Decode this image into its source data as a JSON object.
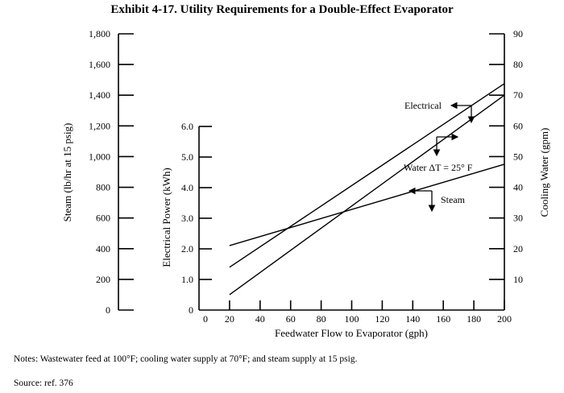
{
  "title": "Exhibit 4-17. Utility Requirements for a Double-Effect Evaporator",
  "notes": "Notes:  Wastewater feed at 100°F; cooling water supply at 70°F; and steam supply at 15 psig.",
  "source": "Source:  ref. 376",
  "chart_data": {
    "type": "line",
    "xlabel": "Feedwater Flow to Evaporator (gph)",
    "x_ticks": [
      "0",
      "20",
      "40",
      "60",
      "80",
      "100",
      "120",
      "140",
      "160",
      "180",
      "200"
    ],
    "xlim": [
      0,
      200
    ],
    "axes": {
      "steam": {
        "label": "Steam (lb/hr at 15 psig)",
        "ylim": [
          0,
          1800
        ],
        "ticks": [
          "0",
          "200",
          "400",
          "600",
          "800",
          "1,000",
          "1,200",
          "1,400",
          "1,600",
          "1,800"
        ]
      },
      "electrical": {
        "label": "Electrical Power (kWh)",
        "ylim": [
          0,
          6.0
        ],
        "ticks": [
          "0",
          "1.0",
          "2.0",
          "3.0",
          "4.0",
          "5.0",
          "6.0"
        ]
      },
      "cooling": {
        "label": "Cooling Water (gpm)",
        "ylim": [
          0,
          90
        ],
        "ticks": [
          "10",
          "20",
          "30",
          "40",
          "50",
          "60",
          "70",
          "80",
          "90"
        ]
      }
    },
    "series": [
      {
        "name": "Electrical",
        "axis": "electrical",
        "x": [
          20,
          200
        ],
        "y": [
          1.4,
          7.4
        ]
      },
      {
        "name": "Water ΔT = 25° F",
        "axis": "cooling",
        "x": [
          20,
          200
        ],
        "y": [
          5,
          70
        ]
      },
      {
        "name": "Steam",
        "axis": "steam",
        "x": [
          20,
          200
        ],
        "y": [
          420,
          950
        ]
      }
    ]
  }
}
